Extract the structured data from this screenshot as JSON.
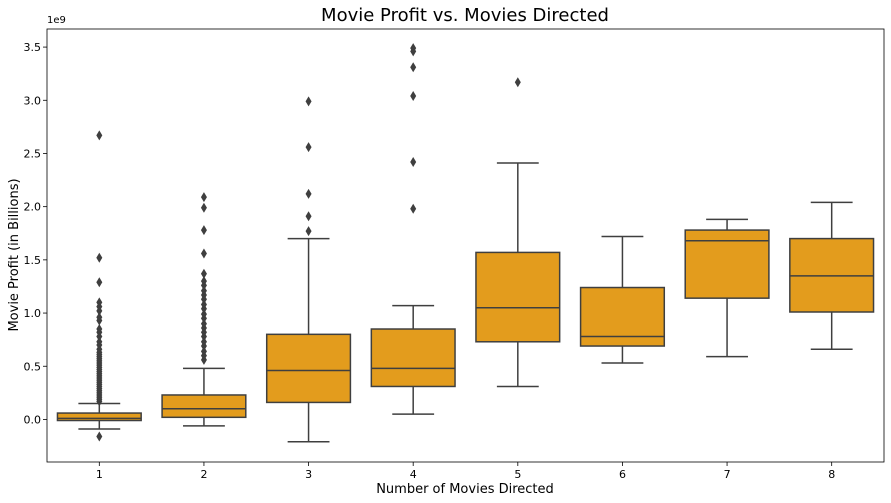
{
  "chart_data": {
    "type": "box",
    "title": "Movie Profit vs. Movies Directed",
    "xlabel": "Number of Movies Directed",
    "ylabel": "Movie Profit (in Billions)",
    "y_exponent_label": "1e9",
    "ylim": [
      -0.4,
      3.67
    ],
    "yticks": [
      0.0,
      0.5,
      1.0,
      1.5,
      2.0,
      2.5,
      3.0,
      3.5
    ],
    "ytick_labels": [
      "0.0",
      "0.5",
      "1.0",
      "1.5",
      "2.0",
      "2.5",
      "3.0",
      "3.5"
    ],
    "categories": [
      "1",
      "2",
      "3",
      "4",
      "5",
      "6",
      "7",
      "8"
    ],
    "box_color": "#e39c1d",
    "line_color": "#3f3f3f",
    "boxes": [
      {
        "category": "1",
        "whisker_low": -0.09,
        "q1": -0.01,
        "median": 0.01,
        "q3": 0.06,
        "whisker_high": 0.15,
        "outliers": [
          -0.16,
          0.17,
          0.19,
          0.21,
          0.23,
          0.25,
          0.27,
          0.29,
          0.31,
          0.33,
          0.35,
          0.37,
          0.39,
          0.41,
          0.43,
          0.45,
          0.47,
          0.49,
          0.51,
          0.53,
          0.55,
          0.57,
          0.59,
          0.61,
          0.63,
          0.66,
          0.7,
          0.73,
          0.78,
          0.82,
          0.85,
          0.93,
          0.96,
          1.02,
          1.06,
          1.1,
          1.29,
          1.52,
          2.67
        ]
      },
      {
        "category": "2",
        "whisker_low": -0.06,
        "q1": 0.02,
        "median": 0.1,
        "q3": 0.23,
        "whisker_high": 0.48,
        "outliers": [
          0.56,
          0.6,
          0.64,
          0.69,
          0.73,
          0.78,
          0.82,
          0.86,
          0.9,
          0.95,
          0.99,
          1.04,
          1.08,
          1.13,
          1.17,
          1.21,
          1.26,
          1.3,
          1.37,
          1.56,
          1.78,
          1.99,
          2.09
        ]
      },
      {
        "category": "3",
        "whisker_low": -0.21,
        "q1": 0.16,
        "median": 0.46,
        "q3": 0.8,
        "whisker_high": 1.7,
        "outliers": [
          1.77,
          1.91,
          2.12,
          2.56,
          2.99
        ]
      },
      {
        "category": "4",
        "whisker_low": 0.05,
        "q1": 0.31,
        "median": 0.48,
        "q3": 0.85,
        "whisker_high": 1.07,
        "outliers": [
          1.98,
          2.42,
          3.04,
          3.31,
          3.46,
          3.49
        ]
      },
      {
        "category": "5",
        "whisker_low": 0.31,
        "q1": 0.73,
        "median": 1.05,
        "q3": 1.57,
        "whisker_high": 2.41,
        "outliers": [
          3.17
        ]
      },
      {
        "category": "6",
        "whisker_low": 0.53,
        "q1": 0.69,
        "median": 0.78,
        "q3": 1.24,
        "whisker_high": 1.72,
        "outliers": []
      },
      {
        "category": "7",
        "whisker_low": 0.59,
        "q1": 1.14,
        "median": 1.68,
        "q3": 1.78,
        "whisker_high": 1.88,
        "outliers": []
      },
      {
        "category": "8",
        "whisker_low": 0.66,
        "q1": 1.01,
        "median": 1.35,
        "q3": 1.7,
        "whisker_high": 2.04,
        "outliers": []
      }
    ],
    "grid": false,
    "legend": "none"
  }
}
